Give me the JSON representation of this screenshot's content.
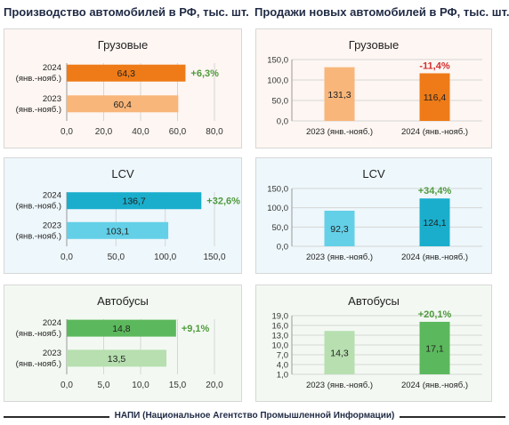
{
  "header": {
    "left_title": "Производство автомобилей в РФ, тыс. шт.",
    "right_title": "Продажи новых автомобилей в РФ, тыс. шт."
  },
  "footer": {
    "source": "НАПИ (Национальное Агентство Промышленной Информации)"
  },
  "colors": {
    "orange_dark": "#ee7b17",
    "orange_light": "#f8b67a",
    "blue_dark": "#1aaecc",
    "blue_light": "#63d0e8",
    "green_dark": "#5cb85c",
    "green_light": "#b7dfb0",
    "growth_green": "#4f9a3e",
    "decline_red": "#d22f2f"
  },
  "chart_data": [
    {
      "id": "prod_trucks",
      "type": "bar",
      "orientation": "horizontal",
      "title": "Грузовые",
      "categories": [
        "2024 (янв.-нояб.)",
        "2023 (янв.-нояб.)"
      ],
      "values": [
        64.3,
        60.4
      ],
      "value_labels": [
        "64,3",
        "60,4"
      ],
      "xlim": [
        0,
        80
      ],
      "ticks": [
        "0,0",
        "20,0",
        "40,0",
        "60,0",
        "80,0"
      ],
      "annotation": "+6,3%"
    },
    {
      "id": "sales_trucks",
      "type": "bar",
      "orientation": "vertical",
      "title": "Грузовые",
      "categories": [
        "2023 (янв.-нояб.)",
        "2024 (янв.-нояб.)"
      ],
      "values": [
        131.3,
        116.4
      ],
      "value_labels": [
        "131,3",
        "116,4"
      ],
      "ylim": [
        0,
        150
      ],
      "ticks": [
        "0,0",
        "50,0",
        "100,0",
        "150,0"
      ],
      "annotation": "-11,4%"
    },
    {
      "id": "prod_lcv",
      "type": "bar",
      "orientation": "horizontal",
      "title": "LCV",
      "categories": [
        "2024 (янв.-нояб.)",
        "2023 (янв.-нояб.)"
      ],
      "values": [
        136.7,
        103.1
      ],
      "value_labels": [
        "136,7",
        "103,1"
      ],
      "xlim": [
        0,
        150
      ],
      "ticks": [
        "0,0",
        "50,0",
        "100,0",
        "150,0"
      ],
      "annotation": "+32,6%"
    },
    {
      "id": "sales_lcv",
      "type": "bar",
      "orientation": "vertical",
      "title": "LCV",
      "categories": [
        "2023 (янв.-нояб.)",
        "2024 (янв.-нояб.)"
      ],
      "values": [
        92.3,
        124.1
      ],
      "value_labels": [
        "92,3",
        "124,1"
      ],
      "ylim": [
        0,
        150
      ],
      "ticks": [
        "0,0",
        "50,0",
        "100,0",
        "150,0"
      ],
      "annotation": "+34,4%"
    },
    {
      "id": "prod_buses",
      "type": "bar",
      "orientation": "horizontal",
      "title": "Автобусы",
      "categories": [
        "2024 (янв.-нояб.)",
        "2023 (янв.-нояб.)"
      ],
      "values": [
        14.8,
        13.5
      ],
      "value_labels": [
        "14,8",
        "13,5"
      ],
      "xlim": [
        0,
        20
      ],
      "ticks": [
        "0,0",
        "5,0",
        "10,0",
        "15,0",
        "20,0"
      ],
      "annotation": "+9,1%"
    },
    {
      "id": "sales_buses",
      "type": "bar",
      "orientation": "vertical",
      "title": "Автобусы",
      "categories": [
        "2023 (янв.-нояб.)",
        "2024 (янв.-нояб.)"
      ],
      "values": [
        14.3,
        17.1
      ],
      "value_labels": [
        "14,3",
        "17,1"
      ],
      "ylim": [
        1,
        19
      ],
      "ticks": [
        "1,0",
        "4,0",
        "7,0",
        "10,0",
        "13,0",
        "16,0",
        "19,0"
      ],
      "annotation": "+20,1%"
    }
  ]
}
